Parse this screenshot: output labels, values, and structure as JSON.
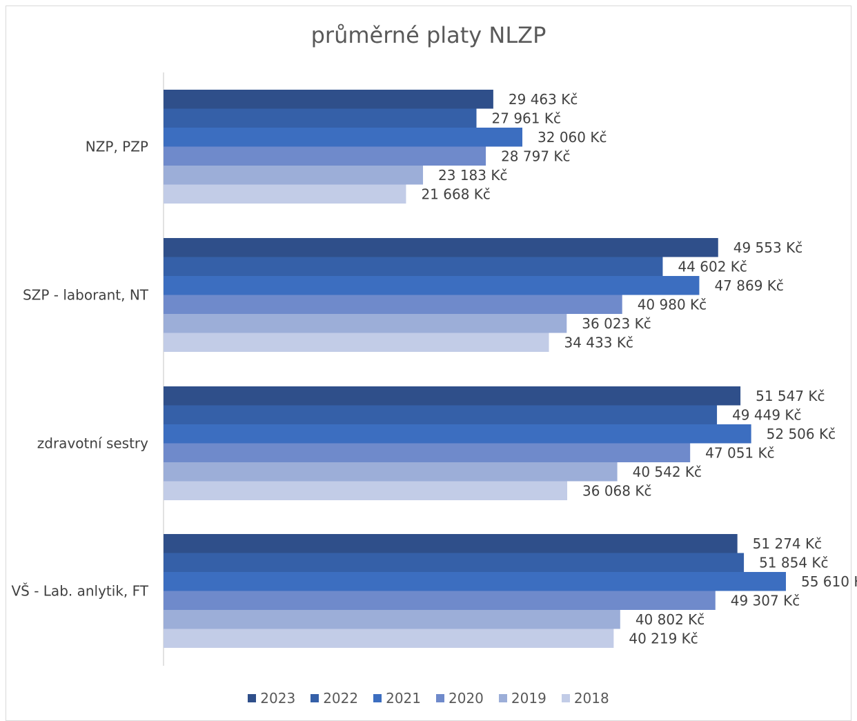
{
  "chart_data": {
    "type": "bar",
    "orientation": "horizontal",
    "title": "průměrné platy NLZP",
    "categories": [
      "NZP, PZP",
      "SZP - laborant, NT",
      "zdravotní sestry",
      "VŠ - Lab. anlytik, FT"
    ],
    "unit": "Kč",
    "xlim": [
      0,
      56000
    ],
    "grid": false,
    "legend_position": "bottom",
    "series": [
      {
        "name": "2023",
        "color": "#2f4f8a",
        "values": [
          29463,
          49553,
          51547,
          51274
        ]
      },
      {
        "name": "2022",
        "color": "#3560a8",
        "values": [
          27961,
          44602,
          49449,
          51854
        ]
      },
      {
        "name": "2021",
        "color": "#3c6ec0",
        "values": [
          32060,
          47869,
          52506,
          55610
        ]
      },
      {
        "name": "2020",
        "color": "#6f8acb",
        "values": [
          28797,
          40980,
          47051,
          49307
        ]
      },
      {
        "name": "2019",
        "color": "#9caed8",
        "values": [
          23183,
          36023,
          40542,
          40802
        ]
      },
      {
        "name": "2018",
        "color": "#c2cce7",
        "values": [
          21668,
          34433,
          36068,
          40219
        ]
      }
    ]
  }
}
